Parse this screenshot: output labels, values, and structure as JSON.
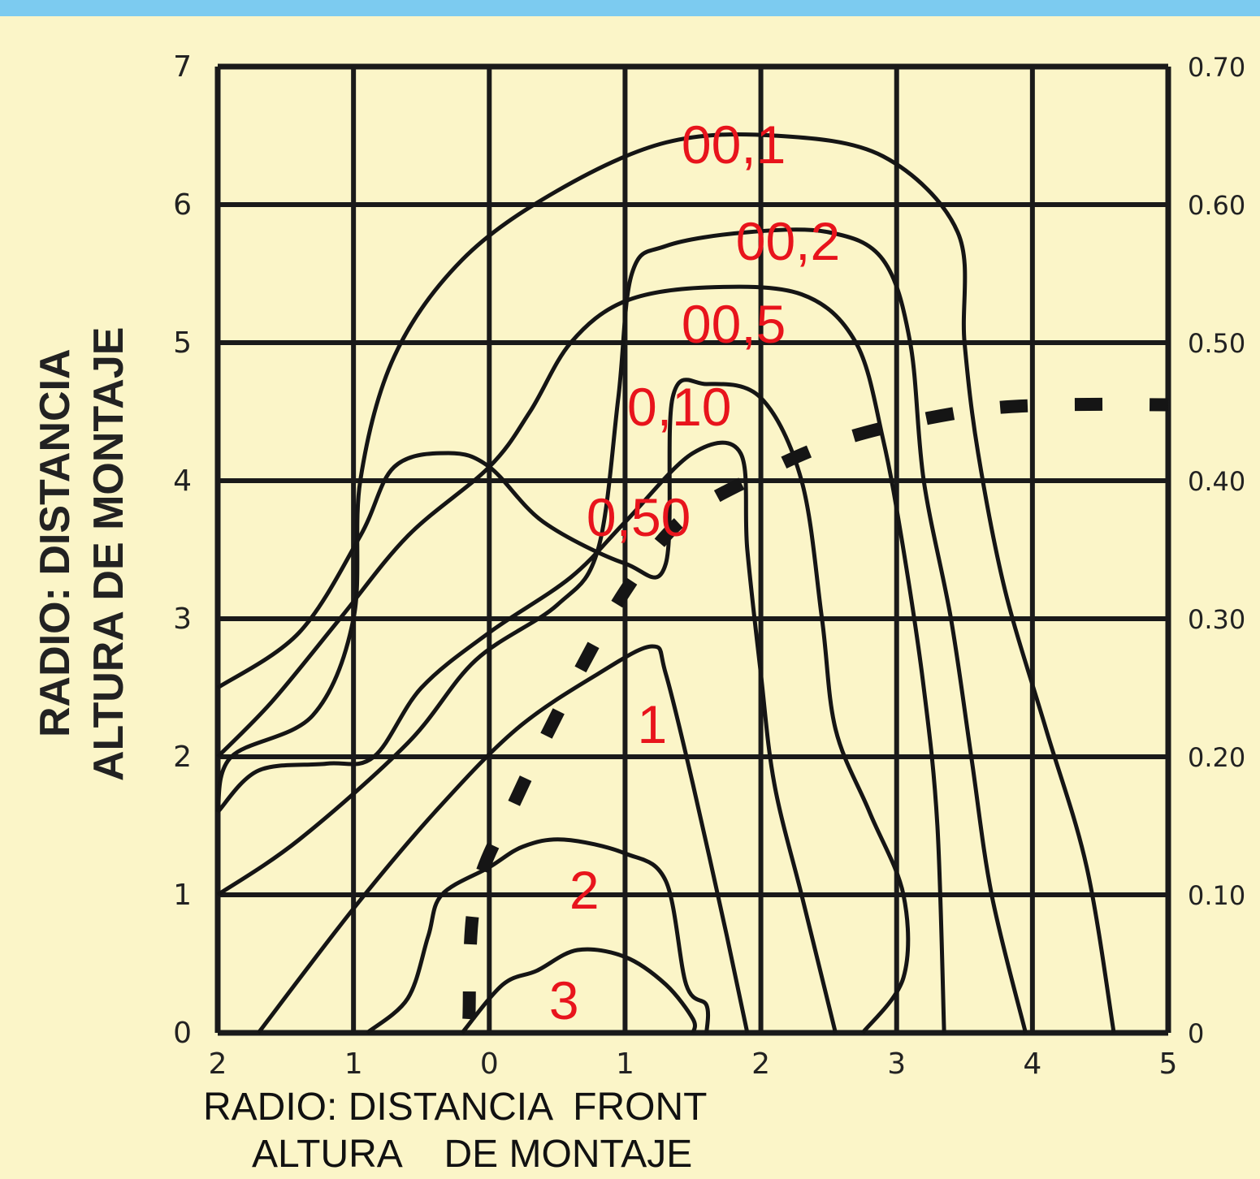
{
  "chart_data": {
    "type": "line",
    "xlabel_line1": "RADIO: DISTANCIA  FRONT",
    "xlabel_line2": "ALTURA    DE MONTAJE",
    "ylabel_line1": "RADIO: DISTANCIA",
    "ylabel_line2": "ALTURA DE MONTAJE",
    "x_ticks": [
      "2",
      "1",
      "0",
      "1",
      "2",
      "3",
      "4",
      "5"
    ],
    "y_ticks": [
      "0",
      "1",
      "2",
      "3",
      "4",
      "5",
      "6",
      "7"
    ],
    "y2_ticks": [
      "0",
      "0.10",
      "0.20",
      "0.30",
      "0.40",
      "0.50",
      "0.60",
      "0.70"
    ],
    "xlim": [
      -2,
      5
    ],
    "ylim": [
      0,
      7
    ],
    "grid": true,
    "curve_label_color": "#e8141c",
    "series": [
      {
        "label": "00,1",
        "label_at": [
          1.8,
          6.3
        ],
        "points": [
          [
            -2,
            1.6
          ],
          [
            -1.9,
            2.0
          ],
          [
            -1.3,
            2.3
          ],
          [
            -1.0,
            3.0
          ],
          [
            -0.95,
            4.0
          ],
          [
            -0.7,
            4.9
          ],
          [
            -0.2,
            5.6
          ],
          [
            0.5,
            6.1
          ],
          [
            1.3,
            6.45
          ],
          [
            2.1,
            6.5
          ],
          [
            2.9,
            6.35
          ],
          [
            3.45,
            5.8
          ],
          [
            3.5,
            5.0
          ],
          [
            3.6,
            4.2
          ],
          [
            3.8,
            3.2
          ],
          [
            4.1,
            2.2
          ],
          [
            4.4,
            1.2
          ],
          [
            4.6,
            0
          ]
        ]
      },
      {
        "label": "00,2",
        "label_at": [
          2.2,
          5.6
        ],
        "points": [
          [
            -2,
            1.0
          ],
          [
            -1.4,
            1.4
          ],
          [
            -0.6,
            2.1
          ],
          [
            -0.1,
            2.7
          ],
          [
            0.5,
            3.1
          ],
          [
            0.8,
            3.5
          ],
          [
            0.95,
            4.6
          ],
          [
            1.05,
            5.5
          ],
          [
            1.3,
            5.7
          ],
          [
            1.9,
            5.8
          ],
          [
            2.5,
            5.8
          ],
          [
            2.9,
            5.6
          ],
          [
            3.1,
            5.0
          ],
          [
            3.2,
            4.0
          ],
          [
            3.4,
            3.0
          ],
          [
            3.55,
            2.0
          ],
          [
            3.7,
            1.0
          ],
          [
            3.95,
            0
          ]
        ]
      },
      {
        "label": "00,5",
        "label_at": [
          1.8,
          5.0
        ],
        "points": [
          [
            -2,
            2.0
          ],
          [
            -1.6,
            2.4
          ],
          [
            -1.1,
            3.0
          ],
          [
            -0.6,
            3.6
          ],
          [
            0.0,
            4.1
          ],
          [
            0.3,
            4.5
          ],
          [
            0.6,
            5.0
          ],
          [
            1.0,
            5.3
          ],
          [
            1.6,
            5.4
          ],
          [
            2.3,
            5.35
          ],
          [
            2.7,
            5.0
          ],
          [
            2.9,
            4.3
          ],
          [
            3.05,
            3.5
          ],
          [
            3.2,
            2.5
          ],
          [
            3.3,
            1.5
          ],
          [
            3.35,
            0
          ]
        ]
      },
      {
        "label": "0,10",
        "label_at": [
          1.4,
          4.4
        ],
        "points": [
          [
            -2,
            2.5
          ],
          [
            -1.4,
            2.9
          ],
          [
            -0.95,
            3.6
          ],
          [
            -0.7,
            4.1
          ],
          [
            -0.3,
            4.2
          ],
          [
            0.0,
            4.1
          ],
          [
            0.4,
            3.7
          ],
          [
            1.0,
            3.4
          ],
          [
            1.3,
            3.4
          ],
          [
            1.35,
            4.6
          ],
          [
            1.6,
            4.7
          ],
          [
            2.0,
            4.6
          ],
          [
            2.3,
            4.0
          ],
          [
            2.45,
            3.0
          ],
          [
            2.55,
            2.2
          ],
          [
            2.8,
            1.6
          ],
          [
            3.05,
            1.0
          ],
          [
            3.05,
            0.4
          ],
          [
            2.75,
            0
          ]
        ]
      },
      {
        "label": "0,50",
        "label_at": [
          1.1,
          3.6
        ],
        "points": [
          [
            -2,
            1.6
          ],
          [
            -1.7,
            1.9
          ],
          [
            -1.2,
            1.95
          ],
          [
            -0.85,
            2.0
          ],
          [
            -0.5,
            2.5
          ],
          [
            0.0,
            2.9
          ],
          [
            0.6,
            3.3
          ],
          [
            1.0,
            3.7
          ],
          [
            1.5,
            4.2
          ],
          [
            1.85,
            4.2
          ],
          [
            1.9,
            3.5
          ],
          [
            2.0,
            2.6
          ],
          [
            2.1,
            1.8
          ],
          [
            2.3,
            1.0
          ],
          [
            2.45,
            0.4
          ],
          [
            2.55,
            0
          ]
        ]
      },
      {
        "label": "1",
        "label_at": [
          1.2,
          2.1
        ],
        "points": [
          [
            -1.7,
            0
          ],
          [
            -1.0,
            0.9
          ],
          [
            -0.4,
            1.6
          ],
          [
            0.2,
            2.2
          ],
          [
            0.8,
            2.6
          ],
          [
            1.2,
            2.8
          ],
          [
            1.3,
            2.6
          ],
          [
            1.5,
            1.8
          ],
          [
            1.75,
            0.7
          ],
          [
            1.9,
            0
          ]
        ]
      },
      {
        "label": "2",
        "label_at": [
          0.7,
          0.9
        ],
        "points": [
          [
            -0.9,
            0
          ],
          [
            -0.6,
            0.25
          ],
          [
            -0.45,
            0.7
          ],
          [
            -0.35,
            1.0
          ],
          [
            0.0,
            1.2
          ],
          [
            0.25,
            1.35
          ],
          [
            0.55,
            1.4
          ],
          [
            1.0,
            1.3
          ],
          [
            1.3,
            1.1
          ],
          [
            1.45,
            0.35
          ],
          [
            1.6,
            0.2
          ],
          [
            1.6,
            0
          ]
        ]
      },
      {
        "label": "3",
        "label_at": [
          0.55,
          0.1
        ],
        "points": [
          [
            -0.2,
            0
          ],
          [
            0.1,
            0.35
          ],
          [
            0.35,
            0.45
          ],
          [
            0.65,
            0.6
          ],
          [
            1.0,
            0.55
          ],
          [
            1.3,
            0.35
          ],
          [
            1.5,
            0.1
          ],
          [
            1.5,
            0
          ]
        ]
      },
      {
        "label": "",
        "dashed": true,
        "points": [
          [
            -0.15,
            0.1
          ],
          [
            -0.1,
            1.0
          ],
          [
            0.2,
            1.7
          ],
          [
            0.6,
            2.5
          ],
          [
            1.0,
            3.2
          ],
          [
            1.4,
            3.7
          ],
          [
            1.9,
            4.0
          ],
          [
            2.6,
            4.3
          ],
          [
            3.5,
            4.5
          ],
          [
            4.2,
            4.55
          ],
          [
            5.0,
            4.55
          ]
        ]
      }
    ]
  }
}
